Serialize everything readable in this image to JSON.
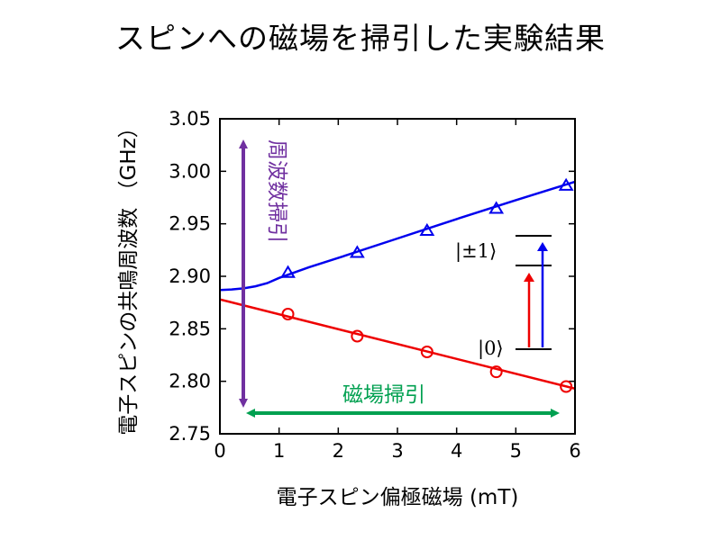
{
  "title": "スピンへの磁場を掃引した実験結果",
  "colors": {
    "upper": "#0000ee",
    "lower": "#ee0000",
    "freq_sweep": "#7030a0",
    "field_sweep": "#00a050",
    "axis": "#000000"
  },
  "chart_data": {
    "type": "scatter",
    "title": "",
    "xlabel": "電子スピン偏極磁場 (mT)",
    "ylabel": "電子スピンの共鳴周波数 （GHz）",
    "xlim": [
      0,
      6
    ],
    "ylim": [
      2.75,
      3.05
    ],
    "xticks": [
      "0",
      "1",
      "2",
      "3",
      "4",
      "5",
      "6"
    ],
    "yticks": [
      "2.75",
      "2.80",
      "2.85",
      "2.90",
      "2.95",
      "3.00",
      "3.05"
    ],
    "grid": false,
    "series": [
      {
        "marker": "triangle",
        "color": "#0000ee",
        "points": [
          [
            1.15,
            2.903
          ],
          [
            2.32,
            2.922
          ],
          [
            3.5,
            2.943
          ],
          [
            4.67,
            2.964
          ],
          [
            5.85,
            2.986
          ]
        ],
        "fit": [
          [
            0,
            2.887
          ],
          [
            0.2,
            2.8875
          ],
          [
            0.4,
            2.8885
          ],
          [
            0.6,
            2.8905
          ],
          [
            0.8,
            2.8935
          ],
          [
            1.0,
            2.8985
          ],
          [
            1.5,
            2.9085
          ],
          [
            2.0,
            2.9175
          ],
          [
            3.0,
            2.936
          ],
          [
            4.0,
            2.9545
          ],
          [
            5.0,
            2.9725
          ],
          [
            6.0,
            2.99
          ]
        ]
      },
      {
        "marker": "circle",
        "color": "#ee0000",
        "points": [
          [
            1.15,
            2.864
          ],
          [
            2.32,
            2.843
          ],
          [
            3.5,
            2.828
          ],
          [
            4.67,
            2.809
          ],
          [
            5.85,
            2.795
          ]
        ],
        "fit": [
          [
            0,
            2.878
          ],
          [
            6.0,
            2.793
          ]
        ]
      }
    ],
    "annotations": {
      "freq_sweep": "周波数掃引",
      "field_sweep": "磁場掃引",
      "level_upper": "|±1⟩",
      "level_lower": "|0⟩"
    }
  }
}
